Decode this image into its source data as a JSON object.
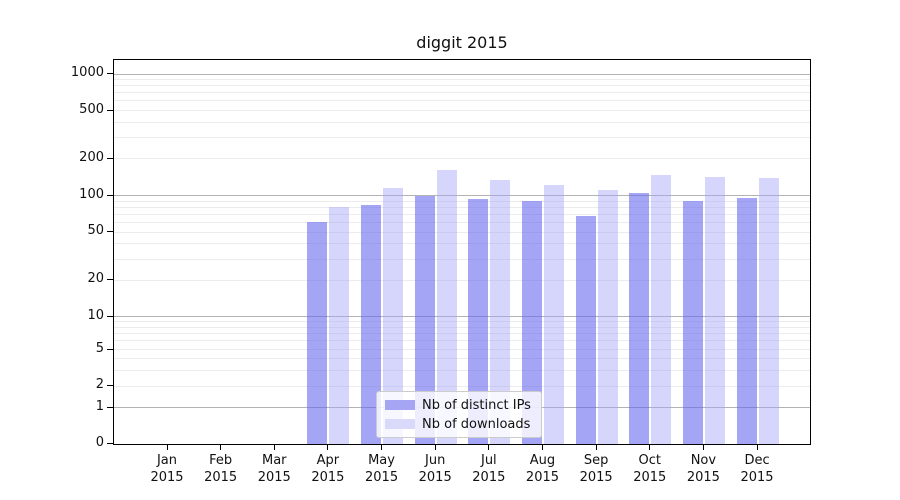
{
  "title": "diggit 2015",
  "chart_data": {
    "type": "bar",
    "title": "diggit 2015",
    "x_categories": [
      "Jan",
      "Feb",
      "Mar",
      "Apr",
      "May",
      "Jun",
      "Jul",
      "Aug",
      "Sep",
      "Oct",
      "Nov",
      "Dec"
    ],
    "x_category_year": "2015",
    "series": [
      {
        "name": "Nb of distinct IPs",
        "color": "#a5a5f4",
        "values": [
          0,
          0,
          0,
          60,
          83,
          100,
          94,
          90,
          68,
          104,
          90,
          95
        ]
      },
      {
        "name": "Nb of downloads",
        "color": "#d9d9f9",
        "values": [
          0,
          0,
          0,
          80,
          115,
          162,
          135,
          123,
          112,
          148,
          142,
          140
        ]
      }
    ],
    "y_ticks": [
      1000,
      500,
      200,
      100,
      50,
      20,
      10,
      5,
      2,
      1,
      0
    ],
    "y_scale": "symlog",
    "ylim": [
      0,
      1300
    ],
    "grid": true,
    "legend_position": "bottom-center"
  },
  "legend": {
    "item1": "Nb of distinct IPs",
    "item2": "Nb of downloads"
  }
}
